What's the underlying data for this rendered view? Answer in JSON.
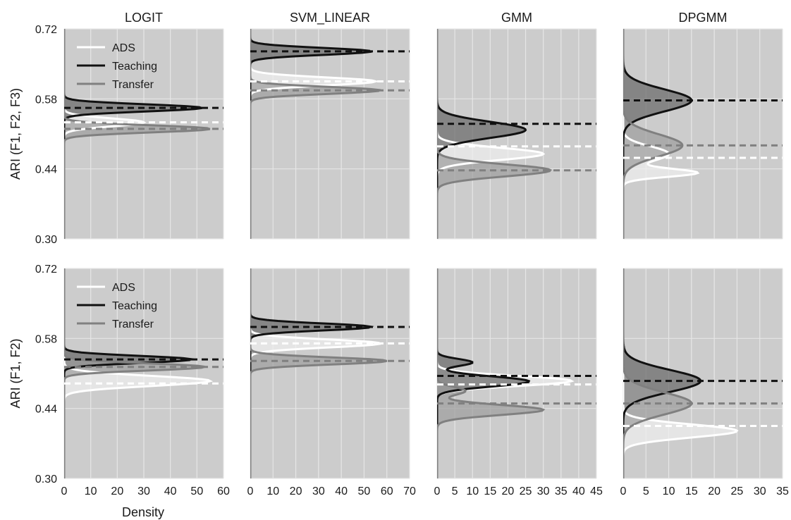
{
  "chart_data": {
    "type": "density",
    "panel_titles": [
      "LOGIT",
      "SVM_LINEAR",
      "GMM",
      "DPGMM"
    ],
    "row_ylabels": [
      "ARI (F1, F2, F3)",
      "ARI (F1, F2)"
    ],
    "xlabel": "Density",
    "ylim": [
      0.3,
      0.72
    ],
    "yticks": [
      "0.30",
      "0.44",
      "0.58",
      "0.72"
    ],
    "background": "#cccccc",
    "grid": true,
    "legend": {
      "position": "top-left",
      "entries": [
        {
          "name": "ADS",
          "color": "#ffffff"
        },
        {
          "name": "Teaching",
          "color": "#111111"
        },
        {
          "name": "Transfer",
          "color": "#808080"
        }
      ]
    },
    "columns": [
      {
        "xlim": [
          0,
          60
        ],
        "xticks": [
          "0",
          "10",
          "20",
          "30",
          "40",
          "50",
          "60"
        ]
      },
      {
        "xlim": [
          0,
          70
        ],
        "xticks": [
          "0",
          "10",
          "20",
          "30",
          "40",
          "50",
          "60",
          "70"
        ]
      },
      {
        "xlim": [
          0,
          45
        ],
        "xticks": [
          "0",
          "5",
          "10",
          "15",
          "20",
          "25",
          "30",
          "35",
          "40",
          "45"
        ]
      },
      {
        "xlim": [
          0,
          35
        ],
        "xticks": [
          "0",
          "5",
          "10",
          "15",
          "20",
          "25",
          "30",
          "35"
        ]
      }
    ],
    "panels": [
      {
        "row": 0,
        "col": 0,
        "series": [
          {
            "name": "ADS",
            "mean": 0.533,
            "modes": [
              {
                "mu": 0.533,
                "sigma": 0.008,
                "peak": 30
              }
            ]
          },
          {
            "name": "Teaching",
            "mean": 0.562,
            "modes": [
              {
                "mu": 0.562,
                "sigma": 0.007,
                "peak": 52
              }
            ]
          },
          {
            "name": "Transfer",
            "mean": 0.52,
            "modes": [
              {
                "mu": 0.52,
                "sigma": 0.007,
                "peak": 55
              }
            ]
          }
        ]
      },
      {
        "row": 0,
        "col": 1,
        "series": [
          {
            "name": "ADS",
            "mean": 0.615,
            "modes": [
              {
                "mu": 0.615,
                "sigma": 0.008,
                "peak": 55
              }
            ]
          },
          {
            "name": "Teaching",
            "mean": 0.675,
            "modes": [
              {
                "mu": 0.675,
                "sigma": 0.007,
                "peak": 53
              }
            ]
          },
          {
            "name": "Transfer",
            "mean": 0.597,
            "modes": [
              {
                "mu": 0.597,
                "sigma": 0.007,
                "peak": 57
              }
            ]
          }
        ]
      },
      {
        "row": 0,
        "col": 2,
        "series": [
          {
            "name": "ADS",
            "mean": 0.485,
            "modes": [
              {
                "mu": 0.47,
                "sigma": 0.012,
                "peak": 30
              }
            ]
          },
          {
            "name": "Teaching",
            "mean": 0.53,
            "modes": [
              {
                "mu": 0.518,
                "sigma": 0.016,
                "peak": 25
              }
            ]
          },
          {
            "name": "Transfer",
            "mean": 0.437,
            "modes": [
              {
                "mu": 0.437,
                "sigma": 0.012,
                "peak": 32
              }
            ]
          }
        ]
      },
      {
        "row": 0,
        "col": 3,
        "series": [
          {
            "name": "ADS",
            "mean": 0.462,
            "modes": [
              {
                "mu": 0.47,
                "sigma": 0.015,
                "peak": 10
              },
              {
                "mu": 0.432,
                "sigma": 0.008,
                "peak": 16
              }
            ]
          },
          {
            "name": "Teaching",
            "mean": 0.577,
            "modes": [
              {
                "mu": 0.577,
                "sigma": 0.022,
                "peak": 15
              }
            ]
          },
          {
            "name": "Transfer",
            "mean": 0.487,
            "modes": [
              {
                "mu": 0.487,
                "sigma": 0.022,
                "peak": 13
              }
            ]
          }
        ]
      },
      {
        "row": 1,
        "col": 0,
        "series": [
          {
            "name": "ADS",
            "mean": 0.49,
            "modes": [
              {
                "mu": 0.495,
                "sigma": 0.01,
                "peak": 55
              }
            ]
          },
          {
            "name": "Teaching",
            "mean": 0.538,
            "modes": [
              {
                "mu": 0.538,
                "sigma": 0.007,
                "peak": 48
              }
            ]
          },
          {
            "name": "Transfer",
            "mean": 0.523,
            "modes": [
              {
                "mu": 0.523,
                "sigma": 0.007,
                "peak": 53
              }
            ]
          }
        ]
      },
      {
        "row": 1,
        "col": 1,
        "series": [
          {
            "name": "ADS",
            "mean": 0.57,
            "modes": [
              {
                "mu": 0.57,
                "sigma": 0.008,
                "peak": 57
              }
            ]
          },
          {
            "name": "Teaching",
            "mean": 0.603,
            "modes": [
              {
                "mu": 0.603,
                "sigma": 0.007,
                "peak": 53
              }
            ]
          },
          {
            "name": "Transfer",
            "mean": 0.535,
            "modes": [
              {
                "mu": 0.535,
                "sigma": 0.007,
                "peak": 60
              }
            ]
          }
        ]
      },
      {
        "row": 1,
        "col": 2,
        "series": [
          {
            "name": "ADS",
            "mean": 0.488,
            "modes": [
              {
                "mu": 0.495,
                "sigma": 0.01,
                "peak": 38
              }
            ]
          },
          {
            "name": "Teaching",
            "mean": 0.505,
            "modes": [
              {
                "mu": 0.494,
                "sigma": 0.01,
                "peak": 26
              },
              {
                "mu": 0.532,
                "sigma": 0.007,
                "peak": 10
              }
            ]
          },
          {
            "name": "Transfer",
            "mean": 0.45,
            "modes": [
              {
                "mu": 0.437,
                "sigma": 0.01,
                "peak": 30
              },
              {
                "mu": 0.475,
                "sigma": 0.008,
                "peak": 8
              }
            ]
          }
        ]
      },
      {
        "row": 1,
        "col": 3,
        "series": [
          {
            "name": "ADS",
            "mean": 0.405,
            "modes": [
              {
                "mu": 0.395,
                "sigma": 0.013,
                "peak": 25
              }
            ]
          },
          {
            "name": "Teaching",
            "mean": 0.495,
            "modes": [
              {
                "mu": 0.495,
                "sigma": 0.022,
                "peak": 17
              }
            ]
          },
          {
            "name": "Transfer",
            "mean": 0.45,
            "modes": [
              {
                "mu": 0.45,
                "sigma": 0.022,
                "peak": 15
              }
            ]
          }
        ]
      }
    ]
  }
}
